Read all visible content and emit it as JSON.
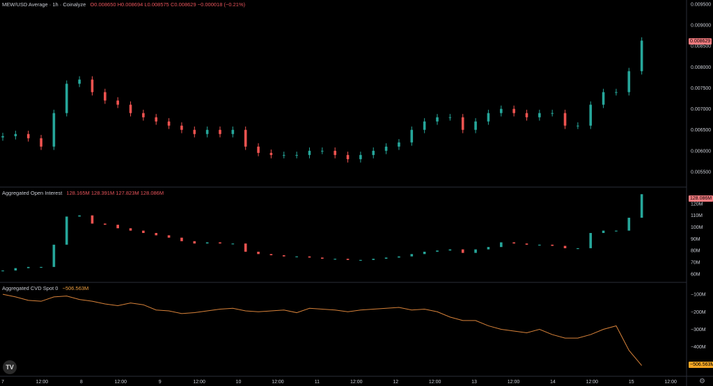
{
  "price_legend": {
    "title": "MEW/USD Average · 1h · Coinalyze",
    "values": "O0.008650 H0.008694 L0.008575 C0.008629 −0.000018 (−0.21%)"
  },
  "oi_legend": {
    "title": "Aggregated Open Interest",
    "values": "128.165M 128.391M 127.823M 128.086M"
  },
  "cvd_legend": {
    "title": "Aggregated CVD Spot 0",
    "values": "−506.563M"
  },
  "price_tag": "0.008629",
  "oi_tag": "128.086M",
  "cvd_tag": "−506.563M",
  "logo_text": "TV",
  "settings_icon": "gear-icon",
  "colors": {
    "up": "#26a69a",
    "down": "#ef5350",
    "cvd_line": "#d9833a",
    "price_tag": "#f77c80",
    "oi_tag": "#f77c80",
    "cvd_tag": "#f5a623"
  },
  "chart_data": [
    {
      "type": "candlestick",
      "title": "MEW/USD Average · 1h · Coinalyze",
      "y_ticks": [
        "0.009500",
        "0.009000",
        "0.008500",
        "0.008000",
        "0.007500",
        "0.007000",
        "0.006500",
        "0.006000",
        "0.005500"
      ],
      "ylim": [
        0.00525,
        0.0095
      ],
      "x_ticks": [
        "7",
        "12:00",
        "8",
        "12:00",
        "9",
        "12:00",
        "10",
        "12:00",
        "11",
        "12:00",
        "12",
        "12:00",
        "13",
        "12:00",
        "14",
        "12:00",
        "15",
        "12:00"
      ],
      "x": [
        0,
        4,
        8,
        12,
        16,
        20,
        24,
        28,
        32,
        36,
        40,
        44,
        48,
        52,
        56,
        60,
        64,
        68,
        72,
        76,
        80,
        84,
        88,
        92,
        96,
        100,
        104,
        108,
        112,
        116,
        120,
        124,
        128,
        132,
        136,
        140,
        144,
        148,
        152,
        156,
        160,
        164,
        168,
        172,
        176,
        180,
        184,
        188,
        192,
        196,
        200
      ],
      "close": [
        0.00635,
        0.0064,
        0.0063,
        0.0061,
        0.0069,
        0.0076,
        0.0077,
        0.0074,
        0.0072,
        0.0071,
        0.0069,
        0.0068,
        0.0067,
        0.0066,
        0.0065,
        0.0064,
        0.0065,
        0.0064,
        0.0065,
        0.0061,
        0.00595,
        0.0059,
        0.0059,
        0.0059,
        0.006,
        0.006,
        0.0059,
        0.0058,
        0.0059,
        0.006,
        0.0061,
        0.0062,
        0.0065,
        0.0067,
        0.0068,
        0.0068,
        0.0065,
        0.0067,
        0.0069,
        0.007,
        0.0069,
        0.0068,
        0.0069,
        0.0069,
        0.0066,
        0.0066,
        0.0071,
        0.0074,
        0.0074,
        0.0079,
        0.00863
      ],
      "series": [
        {
          "name": "MEW/USD Average"
        }
      ]
    },
    {
      "type": "bar",
      "title": "Aggregated Open Interest",
      "y_ticks": [
        "120M",
        "110M",
        "100M",
        "90M",
        "80M",
        "70M",
        "60M"
      ],
      "ylim": [
        57,
        130
      ],
      "x": [
        0,
        4,
        8,
        12,
        16,
        20,
        24,
        28,
        32,
        36,
        40,
        44,
        48,
        52,
        56,
        60,
        64,
        68,
        72,
        76,
        80,
        84,
        88,
        92,
        96,
        100,
        104,
        108,
        112,
        116,
        120,
        124,
        128,
        132,
        136,
        140,
        144,
        148,
        152,
        156,
        160,
        164,
        168,
        172,
        176,
        180,
        184,
        188,
        192,
        196,
        200
      ],
      "values": [
        63,
        65,
        66,
        66,
        85,
        109,
        110,
        103,
        102,
        99,
        97,
        95,
        93,
        91,
        88,
        86,
        87,
        86,
        86,
        79,
        77,
        76,
        75,
        75,
        74,
        73,
        73,
        72,
        72,
        73,
        74,
        75,
        77,
        79,
        80,
        81,
        78,
        81,
        83,
        87,
        86,
        85,
        85,
        84,
        82,
        82,
        95,
        97,
        97,
        108,
        128.086
      ]
    },
    {
      "type": "line",
      "title": "Aggregated CVD Spot 0",
      "y_ticks": [
        "−100M",
        "−200M",
        "−300M",
        "−400M",
        "−500M"
      ],
      "ylim": [
        -540,
        -60
      ],
      "x": [
        0,
        4,
        8,
        12,
        16,
        20,
        24,
        28,
        32,
        36,
        40,
        44,
        48,
        52,
        56,
        60,
        64,
        68,
        72,
        76,
        80,
        84,
        88,
        92,
        96,
        100,
        104,
        108,
        112,
        116,
        120,
        124,
        128,
        132,
        136,
        140,
        144,
        148,
        152,
        156,
        160,
        164,
        168,
        172,
        176,
        180,
        184,
        188,
        192,
        196,
        200
      ],
      "values": [
        -100,
        -115,
        -135,
        -140,
        -115,
        -110,
        -130,
        -140,
        -155,
        -165,
        -150,
        -160,
        -190,
        -195,
        -210,
        -205,
        -195,
        -185,
        -180,
        -195,
        -200,
        -195,
        -190,
        -205,
        -180,
        -185,
        -190,
        -200,
        -190,
        -185,
        -180,
        -175,
        -190,
        -185,
        -200,
        -230,
        -250,
        -250,
        -280,
        -300,
        -310,
        -320,
        -300,
        -330,
        -350,
        -350,
        -330,
        -300,
        -280,
        -420,
        -506.563
      ]
    }
  ]
}
